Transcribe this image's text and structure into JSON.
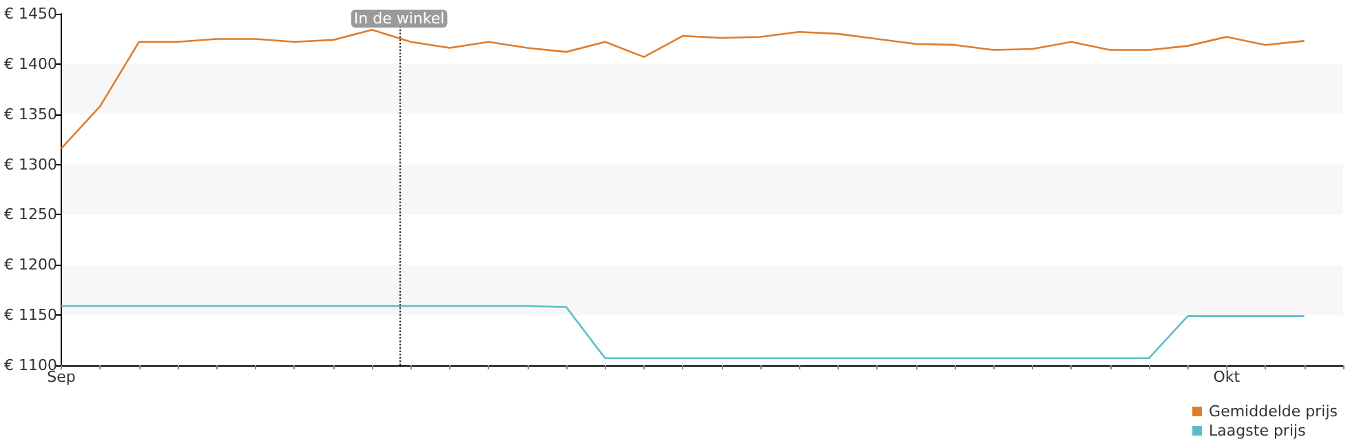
{
  "chart_data": {
    "type": "line",
    "categories": [
      "Sep",
      null,
      null,
      null,
      null,
      null,
      null,
      null,
      null,
      null,
      null,
      null,
      null,
      null,
      null,
      null,
      null,
      null,
      null,
      null,
      null,
      null,
      null,
      null,
      null,
      null,
      null,
      null,
      null,
      null,
      "Okt",
      null,
      null,
      null
    ],
    "series": [
      {
        "name": "Gemiddelde prijs",
        "color": "#e07b2a",
        "values": [
          1316,
          1358,
          1422,
          1422,
          1425,
          1425,
          1422,
          1424,
          1434,
          1422,
          1416,
          1422,
          1416,
          1412,
          1422,
          1407,
          1428,
          1426,
          1427,
          1432,
          1430,
          1425,
          1420,
          1419,
          1414,
          1415,
          1422,
          1414,
          1414,
          1418,
          1427,
          1419,
          1423,
          null
        ]
      },
      {
        "name": "Laagste prijs",
        "color": "#5bbccc",
        "values": [
          1159,
          1159,
          1159,
          1159,
          1159,
          1159,
          1159,
          1159,
          1159,
          1159,
          1159,
          1159,
          1159,
          1158,
          1107,
          1107,
          1107,
          1107,
          1107,
          1107,
          1107,
          1107,
          1107,
          1107,
          1107,
          1107,
          1107,
          1107,
          1107,
          1149,
          1149,
          1149,
          1149,
          null
        ]
      }
    ],
    "ylim": [
      1100,
      1450
    ],
    "yticks": [
      {
        "value": 1100,
        "label": "€ 1100"
      },
      {
        "value": 1150,
        "label": "€ 1150"
      },
      {
        "value": 1200,
        "label": "€ 1200"
      },
      {
        "value": 1250,
        "label": "€ 1250"
      },
      {
        "value": 1300,
        "label": "€ 1300"
      },
      {
        "value": 1350,
        "label": "€ 1350"
      },
      {
        "value": 1400,
        "label": "€ 1400"
      },
      {
        "value": 1450,
        "label": "€ 1450"
      }
    ],
    "annotations": [
      "In de winkel"
    ],
    "legend": "bottom right",
    "marker": "none",
    "line_style": "solid"
  }
}
